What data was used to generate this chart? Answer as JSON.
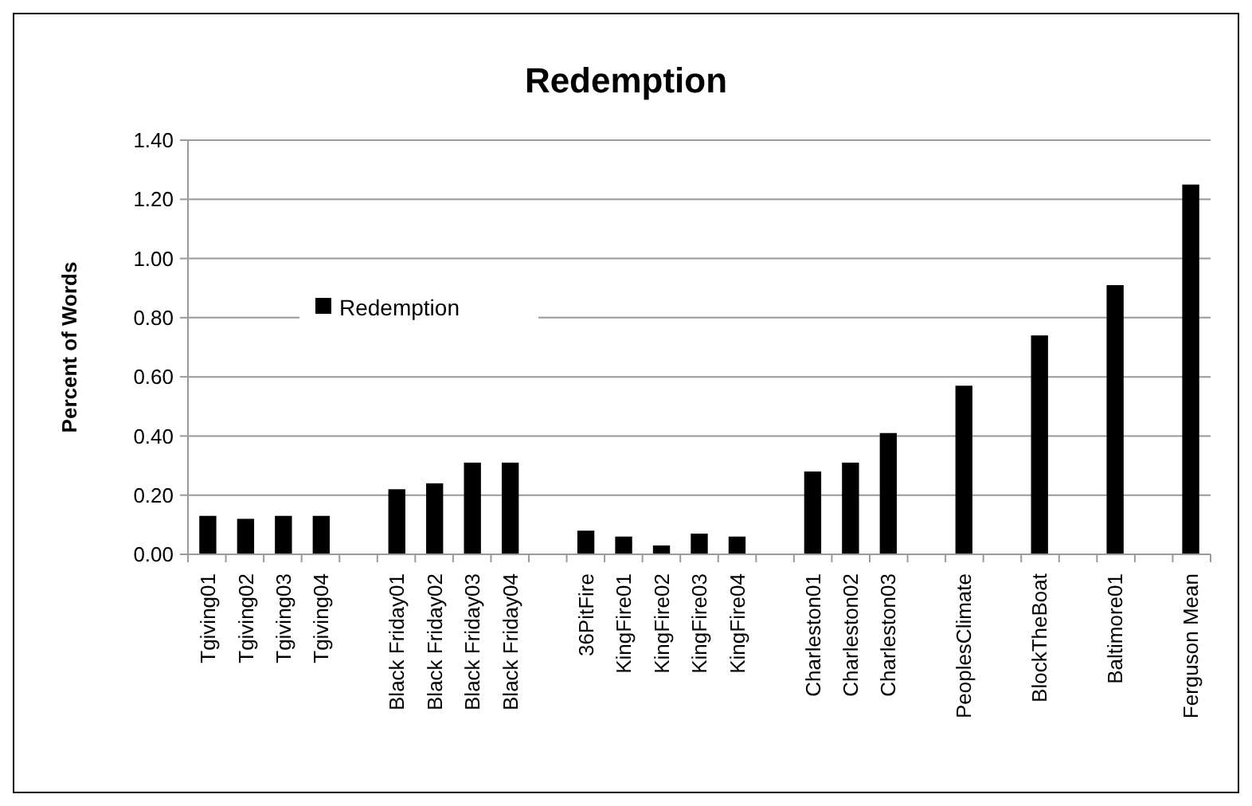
{
  "chart_data": {
    "type": "bar",
    "title": "Redemption",
    "ylabel": "Percent of Words",
    "categories": [
      "Tgiving01",
      "Tgiving02",
      "Tgiving03",
      "Tgiving04",
      null,
      "Black Friday01",
      "Black Friday02",
      "Black Friday03",
      "Black Friday04",
      null,
      "36PitFire",
      "KingFire01",
      "KingFire02",
      "KingFire03",
      "KingFire04",
      null,
      "Charleston01",
      "Charleston02",
      "Charleston03",
      null,
      "PeoplesClimate",
      null,
      "BlockTheBoat",
      null,
      "Baltimore01",
      null,
      "Ferguson Mean"
    ],
    "series": [
      {
        "name": "Redemption",
        "color": "#000000",
        "values": [
          0.13,
          0.12,
          0.13,
          0.13,
          null,
          0.22,
          0.24,
          0.31,
          0.31,
          null,
          0.08,
          0.06,
          0.03,
          0.07,
          0.06,
          null,
          0.28,
          0.31,
          0.41,
          null,
          0.57,
          null,
          0.74,
          null,
          0.91,
          null,
          1.25
        ]
      }
    ],
    "ylim": [
      0,
      1.4
    ],
    "yticks": [
      {
        "value": 0,
        "label": "0.00"
      },
      {
        "value": 0.2,
        "label": "0.20"
      },
      {
        "value": 0.4,
        "label": "0.40"
      },
      {
        "value": 0.6,
        "label": "0.60"
      },
      {
        "value": 0.8,
        "label": "0.80"
      },
      {
        "value": 1,
        "label": "1.00"
      },
      {
        "value": 1.2,
        "label": "1.20"
      },
      {
        "value": 1.4,
        "label": "1.40"
      }
    ],
    "grid": "y",
    "legend": "left"
  }
}
